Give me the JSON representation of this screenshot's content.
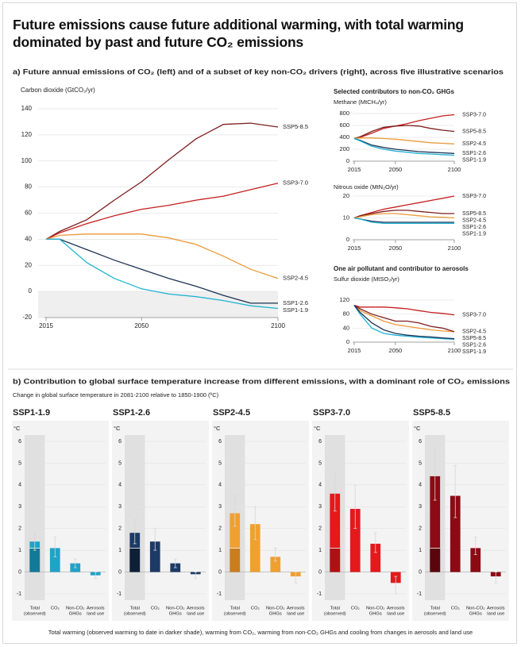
{
  "title": "Future emissions cause future additional warming, with total warming dominated by past and future CO₂ emissions",
  "panel_a_title": "a) Future annual emissions of CO₂ (left) and of a subset of key non-CO₂ drivers (right), across five illustrative scenarios",
  "ghg_heading": "Selected contributors to non-CO₂ GHGs",
  "aerosol_heading": "One air pollutant and contributor to aerosols",
  "panel_b_title": "b) Contribution to global surface temperature increase from different emissions, with a dominant role of CO₂ emissions",
  "panel_b_subtitle": "Change in global surface temperature in 2081-2100 relative to 1850-1900 (ºC)",
  "caption": "Total warming (observed warming to date in darker shade), warming from CO₂, warming from non-CO₂ GHGs and cooling from changes in aerosols and land use",
  "chart_data": [
    {
      "type": "line",
      "title": "Carbon dioxide (GtCO₂/yr)",
      "x": [
        2015,
        2020,
        2030,
        2040,
        2050,
        2060,
        2070,
        2080,
        2090,
        2100
      ],
      "xlim": [
        2015,
        2100
      ],
      "xticks": [
        2015,
        2050,
        2100
      ],
      "ylim": [
        -20,
        140
      ],
      "yticks": [
        -20,
        0,
        20,
        40,
        60,
        80,
        100,
        120,
        140
      ],
      "grid": true,
      "series": [
        {
          "name": "SSP5-8.5",
          "color": "#7e1e1e",
          "values": [
            40,
            46,
            55,
            70,
            84,
            101,
            117,
            128,
            129,
            126
          ]
        },
        {
          "name": "SSP3-7.0",
          "color": "#c4201f",
          "values": [
            40,
            45,
            52,
            58,
            63,
            66,
            70,
            73,
            78,
            83
          ]
        },
        {
          "name": "SSP2-4.5",
          "color": "#ea9a39",
          "values": [
            40,
            43,
            44,
            44,
            44,
            41,
            36,
            27,
            17,
            10
          ]
        },
        {
          "name": "SSP1-2.6",
          "color": "#1d3354",
          "values": [
            40,
            40,
            32,
            24,
            17,
            10,
            4,
            -3,
            -9,
            -9
          ]
        },
        {
          "name": "SSP1-1.9",
          "color": "#1fb3d3",
          "values": [
            40,
            40,
            22,
            10,
            2,
            -2,
            -4,
            -7,
            -11,
            -13
          ]
        }
      ]
    },
    {
      "type": "line",
      "title": "Methane (MtCH₄/yr)",
      "x": [
        2015,
        2020,
        2030,
        2040,
        2050,
        2060,
        2070,
        2080,
        2090,
        2100
      ],
      "xlim": [
        2015,
        2100
      ],
      "xticks": [
        2015,
        2050,
        2100
      ],
      "ylim": [
        0,
        800
      ],
      "yticks": [
        0,
        200,
        400,
        600,
        800
      ],
      "grid": true,
      "series": [
        {
          "name": "SSP3-7.0",
          "color": "#c4201f",
          "values": [
            380,
            400,
            470,
            550,
            590,
            630,
            680,
            720,
            760,
            780
          ]
        },
        {
          "name": "SSP5-8.5",
          "color": "#7e1e1e",
          "values": [
            380,
            410,
            500,
            570,
            590,
            600,
            590,
            550,
            520,
            500
          ]
        },
        {
          "name": "SSP2-4.5",
          "color": "#ea9a39",
          "values": [
            380,
            390,
            390,
            380,
            370,
            350,
            330,
            310,
            300,
            290
          ]
        },
        {
          "name": "SSP1-2.6",
          "color": "#1d3354",
          "values": [
            380,
            350,
            270,
            230,
            200,
            180,
            160,
            150,
            140,
            130
          ]
        },
        {
          "name": "SSP1-1.9",
          "color": "#1fb3d3",
          "values": [
            380,
            340,
            250,
            200,
            170,
            150,
            130,
            120,
            110,
            100
          ]
        }
      ]
    },
    {
      "type": "line",
      "title": "Nitrous oxide (MtN₂O/yr)",
      "x": [
        2015,
        2020,
        2030,
        2040,
        2050,
        2060,
        2070,
        2080,
        2090,
        2100
      ],
      "xlim": [
        2015,
        2100
      ],
      "xticks": [
        2015,
        2050,
        2100
      ],
      "ylim": [
        0,
        20
      ],
      "yticks": [
        0,
        10,
        20
      ],
      "grid": true,
      "series": [
        {
          "name": "SSP3-7.0",
          "color": "#c4201f",
          "values": [
            10,
            11,
            12.5,
            14,
            15,
            16,
            17,
            18,
            19,
            20
          ]
        },
        {
          "name": "SSP5-8.5",
          "color": "#7e1e1e",
          "values": [
            10,
            11,
            12,
            13,
            13.5,
            13.5,
            13,
            12.5,
            12,
            12
          ]
        },
        {
          "name": "SSP2-4.5",
          "color": "#ea9a39",
          "values": [
            10,
            10.5,
            11.5,
            12,
            12,
            11.5,
            11,
            10.5,
            10.3,
            10
          ]
        },
        {
          "name": "SSP1-2.6",
          "color": "#1d3354",
          "values": [
            10,
            9.5,
            8.5,
            8,
            8,
            8,
            8,
            8,
            8,
            8
          ]
        },
        {
          "name": "SSP1-1.9",
          "color": "#1fb3d3",
          "values": [
            10,
            9.5,
            8,
            7.5,
            7.5,
            7.5,
            7.5,
            7.5,
            7.5,
            7.5
          ]
        }
      ]
    },
    {
      "type": "line",
      "title": "Sulfur dioxide (MtSO₂/yr)",
      "x": [
        2015,
        2020,
        2030,
        2040,
        2050,
        2060,
        2070,
        2080,
        2090,
        2100
      ],
      "xlim": [
        2015,
        2100
      ],
      "xticks": [
        2015,
        2050,
        2100
      ],
      "ylim": [
        0,
        120
      ],
      "yticks": [
        0,
        40,
        80,
        120
      ],
      "grid": true,
      "series": [
        {
          "name": "SSP3-7.0",
          "color": "#c4201f",
          "values": [
            105,
            100,
            100,
            100,
            98,
            95,
            90,
            85,
            82,
            78
          ]
        },
        {
          "name": "SSP2-4.5",
          "color": "#ea9a39",
          "values": [
            105,
            90,
            75,
            60,
            50,
            45,
            40,
            35,
            32,
            30
          ]
        },
        {
          "name": "SSP5-8.5",
          "color": "#7e1e1e",
          "values": [
            105,
            95,
            80,
            70,
            60,
            60,
            55,
            45,
            40,
            30
          ]
        },
        {
          "name": "SSP1-1.9",
          "color": "#1fb3d3",
          "values": [
            105,
            80,
            40,
            25,
            20,
            17,
            14,
            12,
            10,
            8
          ]
        },
        {
          "name": "SSP1-2.6",
          "color": "#1d3354",
          "values": [
            105,
            85,
            55,
            35,
            25,
            20,
            17,
            15,
            12,
            10
          ]
        }
      ]
    },
    {
      "type": "bar",
      "title": "SSP1-1.9",
      "color": "#1fa3c8",
      "observed_color": "#127a98",
      "unit": "°C",
      "observed": 1.1,
      "categories": [
        [
          "Total",
          "(observed)"
        ],
        [
          "CO₂"
        ],
        [
          "Non-CO₂",
          "GHGs"
        ],
        [
          "Aerosols",
          "land use"
        ]
      ],
      "values": [
        1.4,
        1.1,
        0.4,
        -0.15
      ],
      "error_low": [
        1.0,
        0.7,
        0.2,
        -0.3
      ],
      "error_high": [
        1.8,
        1.6,
        0.6,
        0
      ],
      "ylim": [
        -1,
        6
      ],
      "yticks": [
        -1,
        0,
        1,
        2,
        3,
        4,
        5,
        6
      ]
    },
    {
      "type": "bar",
      "title": "SSP1-2.6",
      "color": "#1d3a66",
      "observed_color": "#0f1f38",
      "unit": "°C",
      "observed": 1.1,
      "categories": [
        [
          "Total",
          "(observed)"
        ],
        [
          "CO₂"
        ],
        [
          "Non-CO₂",
          "GHGs"
        ],
        [
          "Aerosols",
          "land use"
        ]
      ],
      "values": [
        1.8,
        1.4,
        0.4,
        -0.1
      ],
      "error_low": [
        1.3,
        1.0,
        0.2,
        -0.3
      ],
      "error_high": [
        2.4,
        2.0,
        0.6,
        0
      ],
      "ylim": [
        -1,
        6
      ],
      "yticks": [
        -1,
        0,
        1,
        2,
        3,
        4,
        5,
        6
      ]
    },
    {
      "type": "bar",
      "title": "SSP2-4.5",
      "color": "#f0a030",
      "observed_color": "#c97d1c",
      "unit": "°C",
      "observed": 1.1,
      "categories": [
        [
          "Total",
          "(observed)"
        ],
        [
          "CO₂"
        ],
        [
          "Non-CO₂",
          "GHGs"
        ],
        [
          "Aerosols",
          "land use"
        ]
      ],
      "values": [
        2.7,
        2.2,
        0.7,
        -0.2
      ],
      "error_low": [
        2.1,
        1.5,
        0.5,
        -0.5
      ],
      "error_high": [
        3.5,
        3.0,
        1.1,
        0
      ],
      "ylim": [
        -1,
        6
      ],
      "yticks": [
        -1,
        0,
        1,
        2,
        3,
        4,
        5,
        6
      ]
    },
    {
      "type": "bar",
      "title": "SSP3-7.0",
      "color": "#e3191c",
      "observed_color": "#b01014",
      "unit": "°C",
      "observed": 1.1,
      "categories": [
        [
          "Total",
          "(observed)"
        ],
        [
          "CO₂"
        ],
        [
          "Non-CO₂",
          "GHGs"
        ],
        [
          "Aerosols",
          "land use"
        ]
      ],
      "values": [
        3.6,
        2.9,
        1.3,
        -0.5
      ],
      "error_low": [
        2.8,
        2.0,
        0.9,
        -1.0
      ],
      "error_high": [
        4.6,
        4.0,
        1.8,
        -0.2
      ],
      "ylim": [
        -1,
        6
      ],
      "yticks": [
        -1,
        0,
        1,
        2,
        3,
        4,
        5,
        6
      ]
    },
    {
      "type": "bar",
      "title": "SSP5-8.5",
      "color": "#8c0a14",
      "observed_color": "#5a050c",
      "unit": "°C",
      "observed": 1.1,
      "categories": [
        [
          "Total",
          "(observed)"
        ],
        [
          "CO₂"
        ],
        [
          "Non-CO₂",
          "GHGs"
        ],
        [
          "Aerosols",
          "land use"
        ]
      ],
      "values": [
        4.4,
        3.5,
        1.1,
        -0.2
      ],
      "error_low": [
        3.3,
        2.5,
        0.8,
        -0.5
      ],
      "error_high": [
        5.7,
        4.9,
        1.6,
        0
      ],
      "ylim": [
        -1,
        6
      ],
      "yticks": [
        -1,
        0,
        1,
        2,
        3,
        4,
        5,
        6
      ]
    }
  ]
}
